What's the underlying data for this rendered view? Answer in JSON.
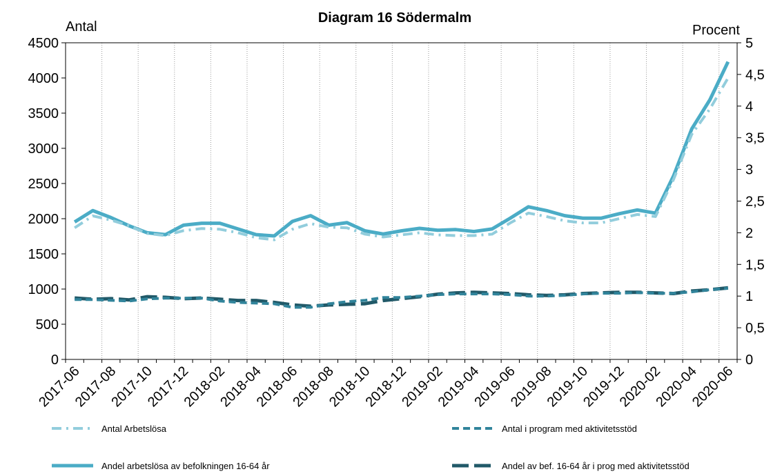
{
  "chart_data": {
    "type": "line",
    "title": "Diagram 16 Södermalm",
    "y_label": "Antal",
    "y2_label": "Procent",
    "categories": [
      "2017-06",
      null,
      "2017-08",
      null,
      "2017-10",
      null,
      "2017-12",
      null,
      "2018-02",
      null,
      "2018-04",
      null,
      "2018-06",
      null,
      "2018-08",
      null,
      "2018-10",
      null,
      "2018-12",
      null,
      "2019-02",
      null,
      "2019-04",
      null,
      "2019-06",
      null,
      "2019-08",
      null,
      "2019-10",
      null,
      "2019-12",
      null,
      "2020-02",
      null,
      "2020-04",
      null,
      "2020-06"
    ],
    "series": [
      {
        "name": "Antal Arbetslösa",
        "color": "#92cddc",
        "dash": "dashdot",
        "axis": "y",
        "values": [
          1870,
          2040,
          1980,
          1900,
          1790,
          1760,
          1830,
          1860,
          1850,
          1800,
          1730,
          1700,
          1850,
          1930,
          1880,
          1870,
          1780,
          1740,
          1770,
          1800,
          1770,
          1760,
          1760,
          1780,
          1940,
          2080,
          2030,
          1970,
          1940,
          1940,
          2000,
          2060,
          2030,
          2560,
          3200,
          3560,
          4000
        ]
      },
      {
        "name": "Antal i program med aktivitetsstöd",
        "color": "#31849b",
        "dash": "dashed",
        "axis": "y",
        "values": [
          850,
          850,
          840,
          830,
          860,
          870,
          870,
          870,
          830,
          810,
          800,
          790,
          740,
          740,
          790,
          820,
          840,
          880,
          880,
          900,
          920,
          930,
          930,
          930,
          920,
          900,
          900,
          910,
          930,
          940,
          940,
          950,
          940,
          940,
          960,
          990,
          1010
        ]
      },
      {
        "name": "Andel arbetslösa av befolkningen 16-64 år",
        "color": "#4bacc6",
        "dash": "solid",
        "axis": "y2",
        "values": [
          2.17,
          2.35,
          2.24,
          2.11,
          2.0,
          1.97,
          2.12,
          2.15,
          2.15,
          2.06,
          1.97,
          1.95,
          2.18,
          2.27,
          2.12,
          2.16,
          2.03,
          1.98,
          2.03,
          2.07,
          2.04,
          2.05,
          2.02,
          2.06,
          2.23,
          2.41,
          2.35,
          2.27,
          2.23,
          2.23,
          2.3,
          2.36,
          2.31,
          2.9,
          3.64,
          4.1,
          4.7
        ]
      },
      {
        "name": "Andel av bef. 16-64 år i prog med aktivitetsstöd",
        "color": "#215968",
        "dash": "longdash",
        "axis": "y2",
        "values": [
          0.97,
          0.95,
          0.96,
          0.94,
          0.99,
          0.98,
          0.96,
          0.97,
          0.95,
          0.93,
          0.93,
          0.9,
          0.86,
          0.84,
          0.86,
          0.87,
          0.88,
          0.93,
          0.96,
          0.99,
          1.03,
          1.05,
          1.06,
          1.05,
          1.04,
          1.02,
          1.01,
          1.02,
          1.04,
          1.05,
          1.06,
          1.06,
          1.05,
          1.04,
          1.08,
          1.1,
          1.13
        ]
      }
    ],
    "ylim": [
      0,
      4500
    ],
    "yticks": [
      0,
      500,
      1000,
      1500,
      2000,
      2500,
      3000,
      3500,
      4000,
      4500
    ],
    "y2lim": [
      0,
      5
    ],
    "y2ticks": [
      0,
      {
        "value": 0.5,
        "label": "0,5"
      },
      1,
      {
        "value": 1.5,
        "label": "1,5"
      },
      2,
      {
        "value": 2.5,
        "label": "2,5"
      },
      3,
      {
        "value": 3.5,
        "label": "3,5"
      },
      4,
      {
        "value": 4.5,
        "label": "4,5"
      },
      5
    ],
    "grid": "x"
  }
}
